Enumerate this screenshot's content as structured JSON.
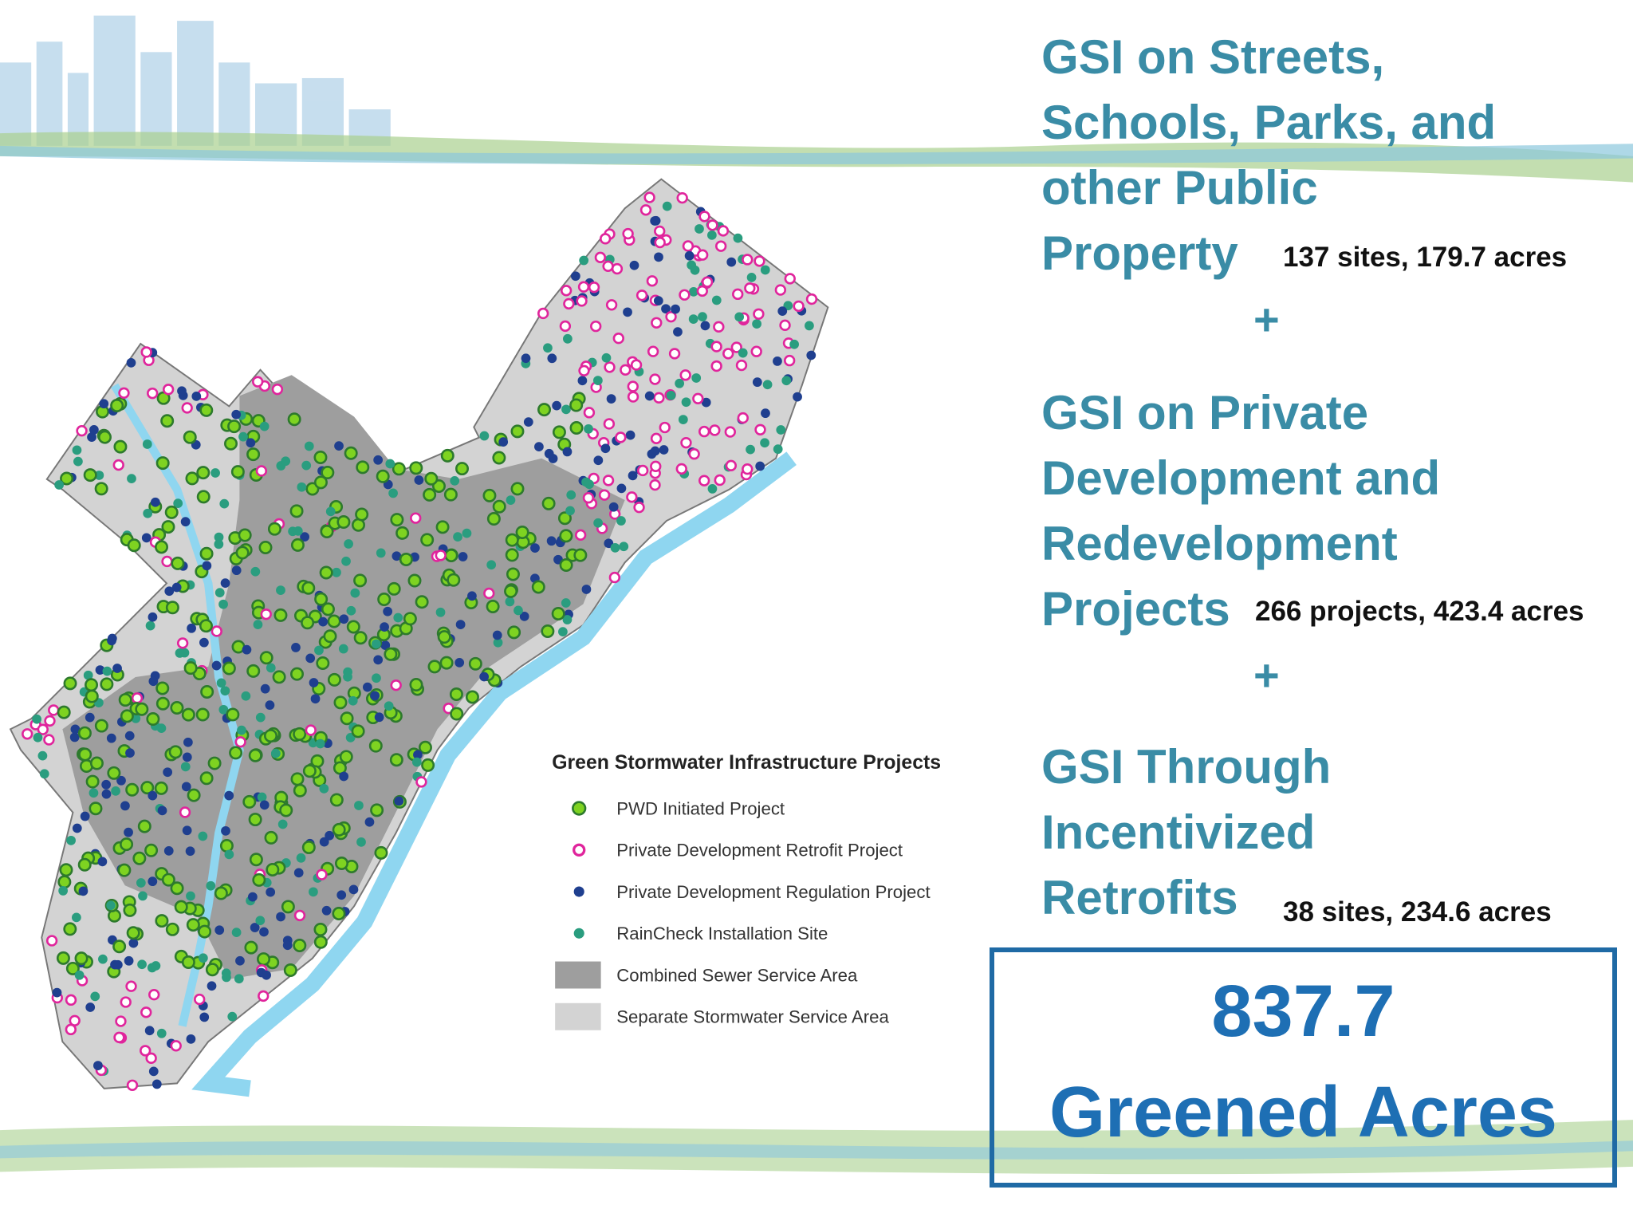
{
  "map": {
    "legend_title": "Green Stormwater Infrastructure Projects",
    "legend": [
      "PWD Initiated Project",
      "Private Development Retrofit Project",
      "Private Development Regulation Project",
      "RainCheck Installation Site",
      "Combined Sewer Service Area",
      "Separate Stormwater Service Area"
    ]
  },
  "sections": [
    {
      "title_lines": [
        "GSI on Streets,",
        "Schools, Parks, and",
        "other Public",
        "Property"
      ],
      "stats": "137 sites, 179.7 acres"
    },
    {
      "title_lines": [
        "GSI on Private",
        "Development and",
        "Redevelopment",
        "Projects"
      ],
      "stats": "266 projects, 423.4 acres"
    },
    {
      "title_lines": [
        "GSI Through",
        "Incentivized",
        "Retrofits"
      ],
      "stats": "38 sites, 234.6 acres"
    }
  ],
  "separators": [
    "+",
    "+"
  ],
  "total": {
    "value": "837.7",
    "label": "Greened Acres"
  }
}
